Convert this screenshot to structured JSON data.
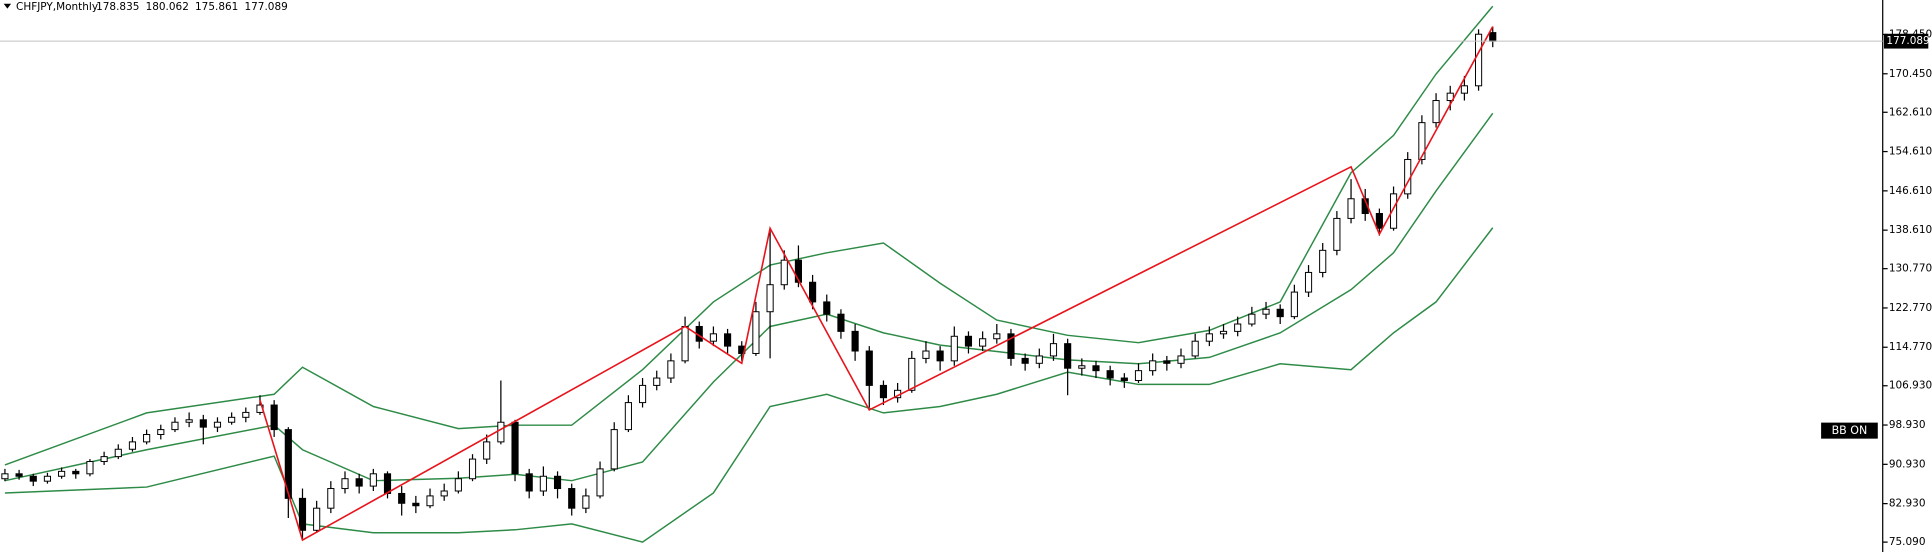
{
  "chart_data": {
    "type": "candlestick",
    "symbol": "CHFJPY,Monthly",
    "indicator_label": "BB ON",
    "ylim": [
      73.08,
      185.47
    ],
    "yticks": [
      {
        "value": 178.45,
        "label": "178.450"
      },
      {
        "value": 170.45,
        "label": "170.450"
      },
      {
        "value": 162.61,
        "label": "162.610"
      },
      {
        "value": 154.61,
        "label": "154.610"
      },
      {
        "value": 146.61,
        "label": "146.610"
      },
      {
        "value": 138.61,
        "label": "138.610"
      },
      {
        "value": 130.77,
        "label": "130.770"
      },
      {
        "value": 122.77,
        "label": "122.770"
      },
      {
        "value": 114.77,
        "label": "114.770"
      },
      {
        "value": 106.93,
        "label": "106.930"
      },
      {
        "value": 98.93,
        "label": "98.930"
      },
      {
        "value": 90.93,
        "label": "90.930"
      },
      {
        "value": 82.93,
        "label": "82.930"
      },
      {
        "value": 75.09,
        "label": "75.090"
      }
    ],
    "candle_up_color": "#ffffff",
    "candle_down_color": "#000000",
    "candles": [
      [
        88.0,
        90.0,
        87.5,
        89.0
      ],
      [
        89.0,
        89.8,
        87.8,
        88.5
      ],
      [
        88.5,
        89.0,
        86.5,
        87.5
      ],
      [
        87.5,
        89.2,
        87.0,
        88.5
      ],
      [
        88.5,
        90.3,
        88.0,
        89.5
      ],
      [
        89.5,
        90.0,
        88.0,
        89.0
      ],
      [
        89.0,
        92.0,
        88.5,
        91.5
      ],
      [
        91.5,
        93.5,
        90.8,
        92.5
      ],
      [
        92.5,
        95.0,
        92.0,
        94.0
      ],
      [
        94.0,
        96.5,
        93.5,
        95.5
      ],
      [
        95.5,
        98.0,
        95.0,
        97.0
      ],
      [
        97.0,
        99.0,
        96.0,
        98.0
      ],
      [
        98.0,
        100.5,
        97.5,
        99.5
      ],
      [
        99.5,
        101.5,
        98.5,
        100.0
      ],
      [
        100.0,
        101.0,
        95.0,
        98.5
      ],
      [
        98.5,
        100.5,
        97.5,
        99.5
      ],
      [
        99.5,
        101.5,
        99.0,
        100.5
      ],
      [
        100.5,
        102.5,
        99.5,
        101.5
      ],
      [
        101.5,
        105.0,
        101.0,
        103.0
      ],
      [
        103.0,
        104.0,
        96.5,
        98.0
      ],
      [
        98.0,
        98.5,
        80.0,
        84.0
      ],
      [
        84.0,
        86.0,
        75.5,
        77.5
      ],
      [
        77.5,
        83.5,
        77.0,
        82.0
      ],
      [
        82.0,
        87.5,
        81.0,
        86.0
      ],
      [
        86.0,
        89.5,
        85.0,
        88.0
      ],
      [
        88.0,
        89.0,
        85.0,
        86.5
      ],
      [
        86.5,
        90.0,
        85.5,
        89.0
      ],
      [
        89.0,
        89.5,
        84.0,
        85.0
      ],
      [
        85.0,
        86.5,
        80.5,
        83.0
      ],
      [
        83.0,
        84.5,
        81.0,
        82.5
      ],
      [
        82.5,
        86.0,
        82.0,
        84.5
      ],
      [
        84.5,
        87.0,
        83.5,
        85.5
      ],
      [
        85.5,
        89.5,
        85.0,
        88.0
      ],
      [
        88.0,
        93.0,
        87.5,
        92.0
      ],
      [
        92.0,
        97.0,
        91.0,
        95.5
      ],
      [
        95.5,
        108.0,
        95.0,
        99.5
      ],
      [
        99.5,
        100.0,
        87.5,
        89.0
      ],
      [
        89.0,
        90.0,
        84.0,
        85.5
      ],
      [
        85.5,
        90.5,
        84.5,
        88.5
      ],
      [
        88.5,
        89.5,
        84.0,
        86.0
      ],
      [
        86.0,
        87.0,
        80.5,
        82.0
      ],
      [
        82.0,
        86.0,
        81.0,
        84.5
      ],
      [
        84.5,
        91.5,
        84.0,
        90.0
      ],
      [
        90.0,
        99.5,
        89.5,
        98.0
      ],
      [
        98.0,
        105.0,
        97.5,
        103.5
      ],
      [
        103.5,
        108.5,
        102.5,
        107.0
      ],
      [
        107.0,
        110.0,
        106.0,
        108.5
      ],
      [
        108.5,
        113.5,
        107.5,
        112.0
      ],
      [
        112.0,
        121.0,
        111.5,
        119.0
      ],
      [
        119.0,
        120.0,
        114.5,
        116.0
      ],
      [
        116.0,
        119.0,
        115.0,
        117.5
      ],
      [
        117.5,
        118.5,
        113.5,
        115.0
      ],
      [
        115.0,
        116.0,
        112.0,
        113.5
      ],
      [
        113.5,
        124.0,
        113.0,
        122.0
      ],
      [
        122.0,
        139.0,
        112.5,
        127.5
      ],
      [
        127.5,
        134.5,
        126.5,
        132.5
      ],
      [
        132.5,
        135.5,
        127.0,
        128.0
      ],
      [
        128.0,
        129.5,
        122.5,
        124.0
      ],
      [
        124.0,
        125.5,
        120.0,
        121.5
      ],
      [
        121.5,
        122.5,
        116.5,
        118.0
      ],
      [
        118.0,
        119.5,
        112.0,
        114.0
      ],
      [
        114.0,
        115.0,
        102.5,
        107.0
      ],
      [
        107.0,
        108.0,
        103.0,
        104.5
      ],
      [
        104.5,
        107.5,
        103.5,
        106.0
      ],
      [
        106.0,
        114.0,
        105.5,
        112.5
      ],
      [
        112.5,
        116.0,
        111.5,
        114.0
      ],
      [
        114.0,
        115.0,
        110.0,
        112.0
      ],
      [
        112.0,
        119.0,
        111.0,
        117.0
      ],
      [
        117.0,
        118.0,
        113.5,
        115.0
      ],
      [
        115.0,
        118.0,
        114.0,
        116.5
      ],
      [
        116.5,
        119.5,
        115.5,
        117.5
      ],
      [
        117.5,
        118.5,
        111.0,
        112.5
      ],
      [
        112.5,
        113.5,
        110.0,
        111.5
      ],
      [
        111.5,
        114.5,
        110.5,
        113.0
      ],
      [
        113.0,
        117.5,
        112.0,
        115.5
      ],
      [
        115.5,
        116.5,
        105.0,
        110.5
      ],
      [
        110.5,
        112.5,
        109.0,
        111.0
      ],
      [
        111.0,
        112.0,
        108.5,
        110.0
      ],
      [
        110.0,
        111.0,
        107.0,
        108.5
      ],
      [
        108.5,
        109.5,
        106.5,
        108.0
      ],
      [
        108.0,
        111.5,
        107.5,
        110.0
      ],
      [
        110.0,
        113.5,
        109.0,
        112.0
      ],
      [
        112.0,
        113.0,
        110.0,
        111.5
      ],
      [
        111.5,
        114.5,
        110.5,
        113.0
      ],
      [
        113.0,
        117.5,
        112.5,
        116.0
      ],
      [
        116.0,
        119.0,
        115.0,
        117.5
      ],
      [
        117.5,
        119.5,
        116.5,
        118.0
      ],
      [
        118.0,
        121.0,
        117.0,
        119.5
      ],
      [
        119.5,
        123.0,
        119.0,
        121.5
      ],
      [
        121.5,
        124.0,
        120.5,
        122.5
      ],
      [
        122.5,
        123.5,
        119.5,
        121.0
      ],
      [
        121.0,
        127.5,
        120.5,
        126.0
      ],
      [
        126.0,
        131.5,
        125.0,
        130.0
      ],
      [
        130.0,
        136.0,
        129.0,
        134.5
      ],
      [
        134.5,
        142.5,
        133.5,
        141.0
      ],
      [
        141.0,
        149.0,
        140.0,
        145.0
      ],
      [
        145.0,
        147.0,
        140.5,
        142.0
      ],
      [
        142.0,
        143.0,
        137.5,
        139.0
      ],
      [
        139.0,
        147.5,
        138.5,
        146.0
      ],
      [
        146.0,
        154.5,
        145.0,
        153.0
      ],
      [
        153.0,
        162.0,
        152.0,
        160.5
      ],
      [
        160.5,
        166.5,
        159.5,
        165.0
      ],
      [
        165.0,
        168.0,
        163.0,
        166.5
      ],
      [
        166.5,
        170.0,
        165.0,
        168.0
      ],
      [
        168.0,
        179.5,
        167.0,
        178.5
      ],
      [
        178.835,
        180.062,
        175.861,
        177.089
      ]
    ],
    "bands": [
      {
        "color": "#2e8b47",
        "x": [
          0,
          10,
          19,
          21,
          26,
          32,
          36,
          40,
          45,
          50,
          54,
          58,
          62,
          66,
          70,
          75,
          80,
          85,
          90,
          95,
          98,
          101,
          105
        ],
        "values": [
          90.8,
          101.4,
          105.2,
          110.7,
          102.7,
          98.2,
          98.9,
          98.9,
          110.2,
          124.0,
          131.5,
          134.0,
          136.0,
          127.8,
          120.3,
          117.2,
          115.7,
          118.2,
          124.0,
          150.3,
          157.9,
          170.4,
          184.2
        ]
      },
      {
        "color": "#2e8b47",
        "x": [
          0,
          10,
          19,
          21,
          26,
          32,
          36,
          40,
          45,
          50,
          54,
          58,
          62,
          66,
          70,
          75,
          80,
          85,
          90,
          95,
          98,
          101,
          105
        ],
        "values": [
          87.6,
          93.9,
          98.9,
          93.9,
          87.6,
          88.1,
          88.9,
          87.6,
          91.4,
          107.7,
          119.0,
          121.5,
          117.7,
          115.2,
          113.9,
          112.2,
          111.4,
          112.7,
          117.7,
          126.5,
          134.0,
          146.6,
          162.4
        ]
      },
      {
        "color": "#2e8b47",
        "x": [
          0,
          10,
          19,
          21,
          26,
          32,
          36,
          40,
          45,
          50,
          54,
          58,
          62,
          66,
          70,
          75,
          80,
          85,
          90,
          95,
          98,
          101,
          105
        ],
        "values": [
          85.1,
          86.3,
          92.6,
          78.8,
          77.0,
          77.0,
          77.6,
          78.8,
          75.1,
          85.1,
          102.7,
          105.2,
          101.4,
          102.7,
          105.2,
          109.7,
          107.2,
          107.2,
          111.4,
          110.2,
          117.7,
          124.0,
          139.1
        ]
      }
    ],
    "zigzag": {
      "color": "#e8141c",
      "x": [
        18,
        21,
        48,
        52,
        54,
        61,
        95,
        97,
        105
      ],
      "values": [
        104.0,
        75.5,
        119.0,
        111.5,
        139.0,
        102.0,
        151.5,
        137.8,
        180.062
      ]
    }
  }
}
